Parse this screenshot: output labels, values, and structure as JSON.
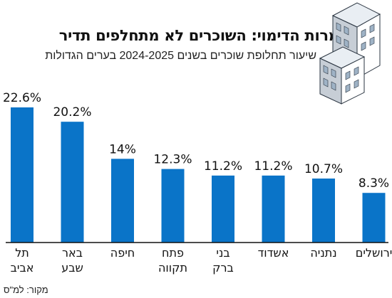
{
  "header": {
    "title": "למרות הדימוי: השוכרים לא מתחלפים תדיר",
    "subtitle": "שיעור תחלופת שוכרים בשנים 2024-2025 בערים הגדולות"
  },
  "footer": {
    "source": "מקור: למ\"ס"
  },
  "colors": {
    "bar": "#0a74c8",
    "axis": "#111111"
  },
  "chart_data": {
    "type": "bar",
    "title": "למרות הדימוי: השוכרים לא מתחלפים תדיר",
    "subtitle": "שיעור תחלופת שוכרים בשנים 2024-2025 בערים הגדולות",
    "categories": [
      [
        "תל",
        "אביב"
      ],
      [
        "באר",
        "שבע"
      ],
      [
        "חיפה"
      ],
      [
        "פתח",
        "תקווה"
      ],
      [
        "בני",
        "ברק"
      ],
      [
        "אשדוד"
      ],
      [
        "נתניה"
      ],
      [
        "ירושלים"
      ]
    ],
    "values": [
      22.6,
      20.2,
      14,
      12.3,
      11.2,
      11.2,
      10.7,
      8.3
    ],
    "value_labels": [
      "22.6%",
      "20.2%",
      "14%",
      "12.3%",
      "11.2%",
      "11.2%",
      "10.7%",
      "8.3%"
    ],
    "ylim": [
      0,
      22.6
    ],
    "grid": false,
    "legend": "none"
  }
}
